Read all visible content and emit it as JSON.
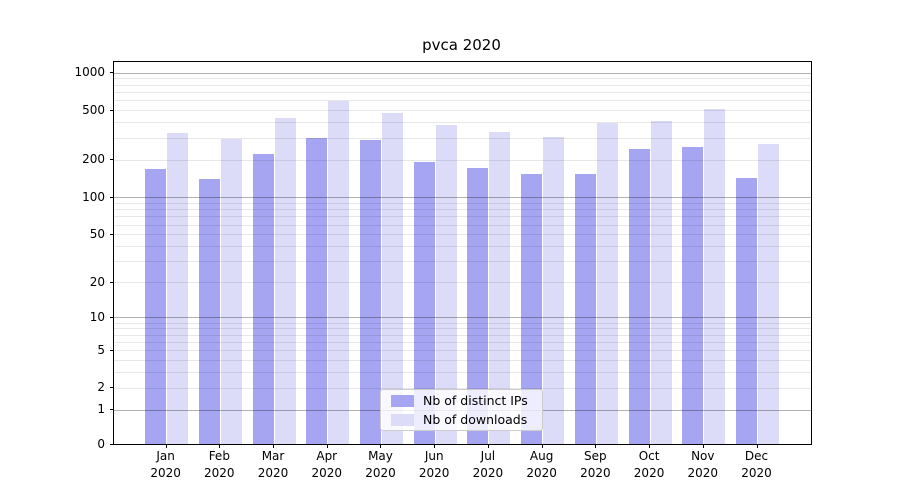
{
  "figure": {
    "title": "pvca 2020",
    "background_color": "#ffffff"
  },
  "chart_data": {
    "type": "bar",
    "title": "pvca 2020",
    "xlabel": "",
    "ylabel": "",
    "categories": [
      "Jan 2020",
      "Feb 2020",
      "Mar 2020",
      "Apr 2020",
      "May 2020",
      "Jun 2020",
      "Jul 2020",
      "Aug 2020",
      "Sep 2020",
      "Oct 2020",
      "Nov 2020",
      "Dec 2020"
    ],
    "category_lines": [
      [
        "Jan",
        "2020"
      ],
      [
        "Feb",
        "2020"
      ],
      [
        "Mar",
        "2020"
      ],
      [
        "Apr",
        "2020"
      ],
      [
        "May",
        "2020"
      ],
      [
        "Jun",
        "2020"
      ],
      [
        "Jul",
        "2020"
      ],
      [
        "Aug",
        "2020"
      ],
      [
        "Sep",
        "2020"
      ],
      [
        "Oct",
        "2020"
      ],
      [
        "Nov",
        "2020"
      ],
      [
        "Dec",
        "2020"
      ]
    ],
    "series": [
      {
        "name": "Nb of distinct IPs",
        "color": "#a5a5f2",
        "values": [
          170,
          140,
          222,
          300,
          288,
          193,
          173,
          155,
          153,
          246,
          255,
          144
        ]
      },
      {
        "name": "Nb of downloads",
        "color": "#dcdcf9",
        "values": [
          330,
          295,
          437,
          590,
          473,
          380,
          335,
          307,
          397,
          408,
          515,
          267
        ]
      }
    ],
    "yscale": "log1p",
    "ylim": [
      0,
      1200
    ],
    "yticks": [
      1000,
      500,
      200,
      100,
      50,
      20,
      10,
      5,
      2,
      1,
      0
    ],
    "grid": {
      "major_values": [
        1,
        10,
        100,
        1000
      ],
      "minor_values": [
        2,
        3,
        4,
        5,
        6,
        7,
        8,
        9,
        20,
        30,
        40,
        50,
        60,
        70,
        80,
        90,
        200,
        300,
        400,
        500,
        600,
        700,
        800,
        900
      ],
      "major_color": "#b3b3b3",
      "minor_color": "#e8e8e8"
    },
    "legend": {
      "position": "lower center",
      "entries": [
        "Nb of distinct IPs",
        "Nb of downloads"
      ]
    }
  }
}
